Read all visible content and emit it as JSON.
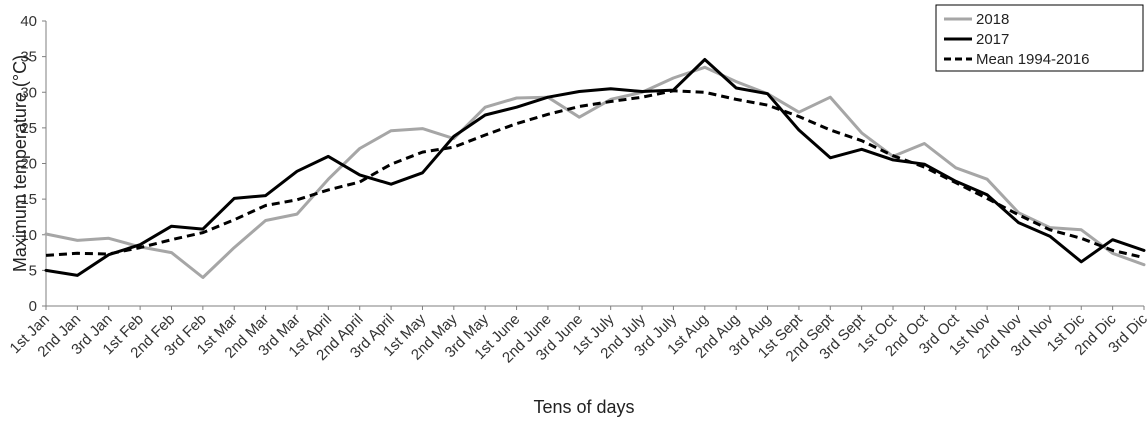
{
  "chart_data": {
    "type": "line",
    "title": "",
    "xlabel": "Tens of days",
    "ylabel": "Maximum temperature (°C)",
    "ylim": [
      0,
      40
    ],
    "yticks": [
      0,
      5,
      10,
      15,
      20,
      25,
      30,
      35,
      40
    ],
    "grid": false,
    "legend_position": "top-right",
    "categories": [
      "1st Jan",
      "2nd Jan",
      "3rd Jan",
      "1st Feb",
      "2nd Feb",
      "3rd Feb",
      "1st Mar",
      "2nd Mar",
      "3rd Mar",
      "1st April",
      "2nd April",
      "3rd April",
      "1st May",
      "2nd May",
      "3rd May",
      "1st June",
      "2nd June",
      "3rd June",
      "1st July",
      "2nd July",
      "3rd July",
      "1st Aug",
      "2nd Aug",
      "3rd Aug",
      "1st Sept",
      "2nd Sept",
      "3rd Sept",
      "1st Oct",
      "2nd Oct",
      "3rd Oct",
      "1st Nov",
      "2nd Nov",
      "3rd Nov",
      "1st Dic",
      "2nd Dic",
      "3rd Dic"
    ],
    "series": [
      {
        "name": "2018",
        "color": "#a6a6a6",
        "style": "solid",
        "values": [
          10.1,
          9.2,
          9.5,
          8.3,
          7.5,
          4.0,
          8.2,
          12.0,
          12.9,
          17.8,
          22.1,
          24.6,
          24.9,
          23.5,
          27.9,
          29.2,
          29.3,
          26.5,
          29.0,
          30.0,
          32.0,
          33.5,
          31.5,
          29.8,
          27.2,
          29.3,
          24.3,
          21.0,
          22.8,
          19.4,
          17.8,
          13.1,
          11.0,
          10.7,
          7.4,
          5.8
        ]
      },
      {
        "name": "2017",
        "color": "#000000",
        "style": "solid",
        "values": [
          5.0,
          4.3,
          7.2,
          8.6,
          11.2,
          10.8,
          15.1,
          15.5,
          18.9,
          21.0,
          18.4,
          17.1,
          18.7,
          23.8,
          26.8,
          27.9,
          29.3,
          30.1,
          30.5,
          30.1,
          30.3,
          34.6,
          30.6,
          29.8,
          24.7,
          20.8,
          22.0,
          20.5,
          19.9,
          17.5,
          15.6,
          11.7,
          9.8,
          6.2,
          9.3,
          7.8
        ]
      },
      {
        "name": "Mean 1994-2016",
        "color": "#000000",
        "style": "dashed",
        "values": [
          7.1,
          7.4,
          7.3,
          8.2,
          9.3,
          10.3,
          12.1,
          14.1,
          14.9,
          16.3,
          17.4,
          19.9,
          21.6,
          22.3,
          24.0,
          25.6,
          26.9,
          28.0,
          28.7,
          29.3,
          30.2,
          30.0,
          29.0,
          28.2,
          26.6,
          24.7,
          23.2,
          21.1,
          19.5,
          17.3,
          15.1,
          12.8,
          10.7,
          9.5,
          7.8,
          6.8
        ]
      }
    ]
  }
}
